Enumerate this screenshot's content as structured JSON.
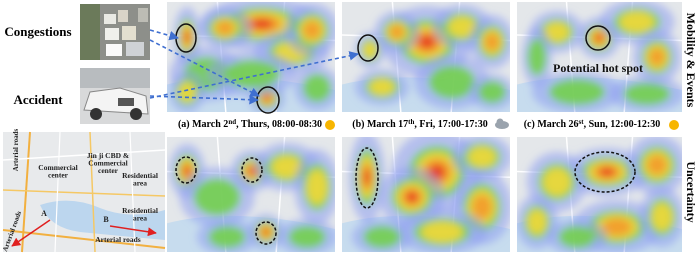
{
  "photo_labels": [
    "Congestions",
    "Accident"
  ],
  "map_labels": [
    {
      "lines": [
        "Arterial roads"
      ]
    },
    {
      "lines": [
        "Commercial",
        "center"
      ]
    },
    {
      "lines": [
        "Jin ji CBD &",
        "Commercial",
        "center"
      ]
    },
    {
      "lines": [
        "Residential",
        "area"
      ]
    },
    {
      "lines": [
        "Residential",
        "area"
      ]
    },
    {
      "lines": [
        "Arterial roads"
      ]
    },
    {
      "lines": [
        "Arterial roads"
      ]
    },
    {
      "lines": [
        "A"
      ]
    },
    {
      "lines": [
        "B"
      ]
    }
  ],
  "captions": [
    {
      "prefix": "(a) March 2",
      "sup": "nd",
      "rest": ", Thurs, 08:00-08:30"
    },
    {
      "prefix": "(b) March 17",
      "sup": "th",
      "rest": ", Fri, 17:00-17:30"
    },
    {
      "prefix": "(c) March 26",
      "sup": "st",
      "rest": ", Sun, 12:00-12:30"
    }
  ],
  "annotation": "Potential hot spot",
  "row_labels": [
    "Mobility & Events",
    "Uncertainty"
  ]
}
